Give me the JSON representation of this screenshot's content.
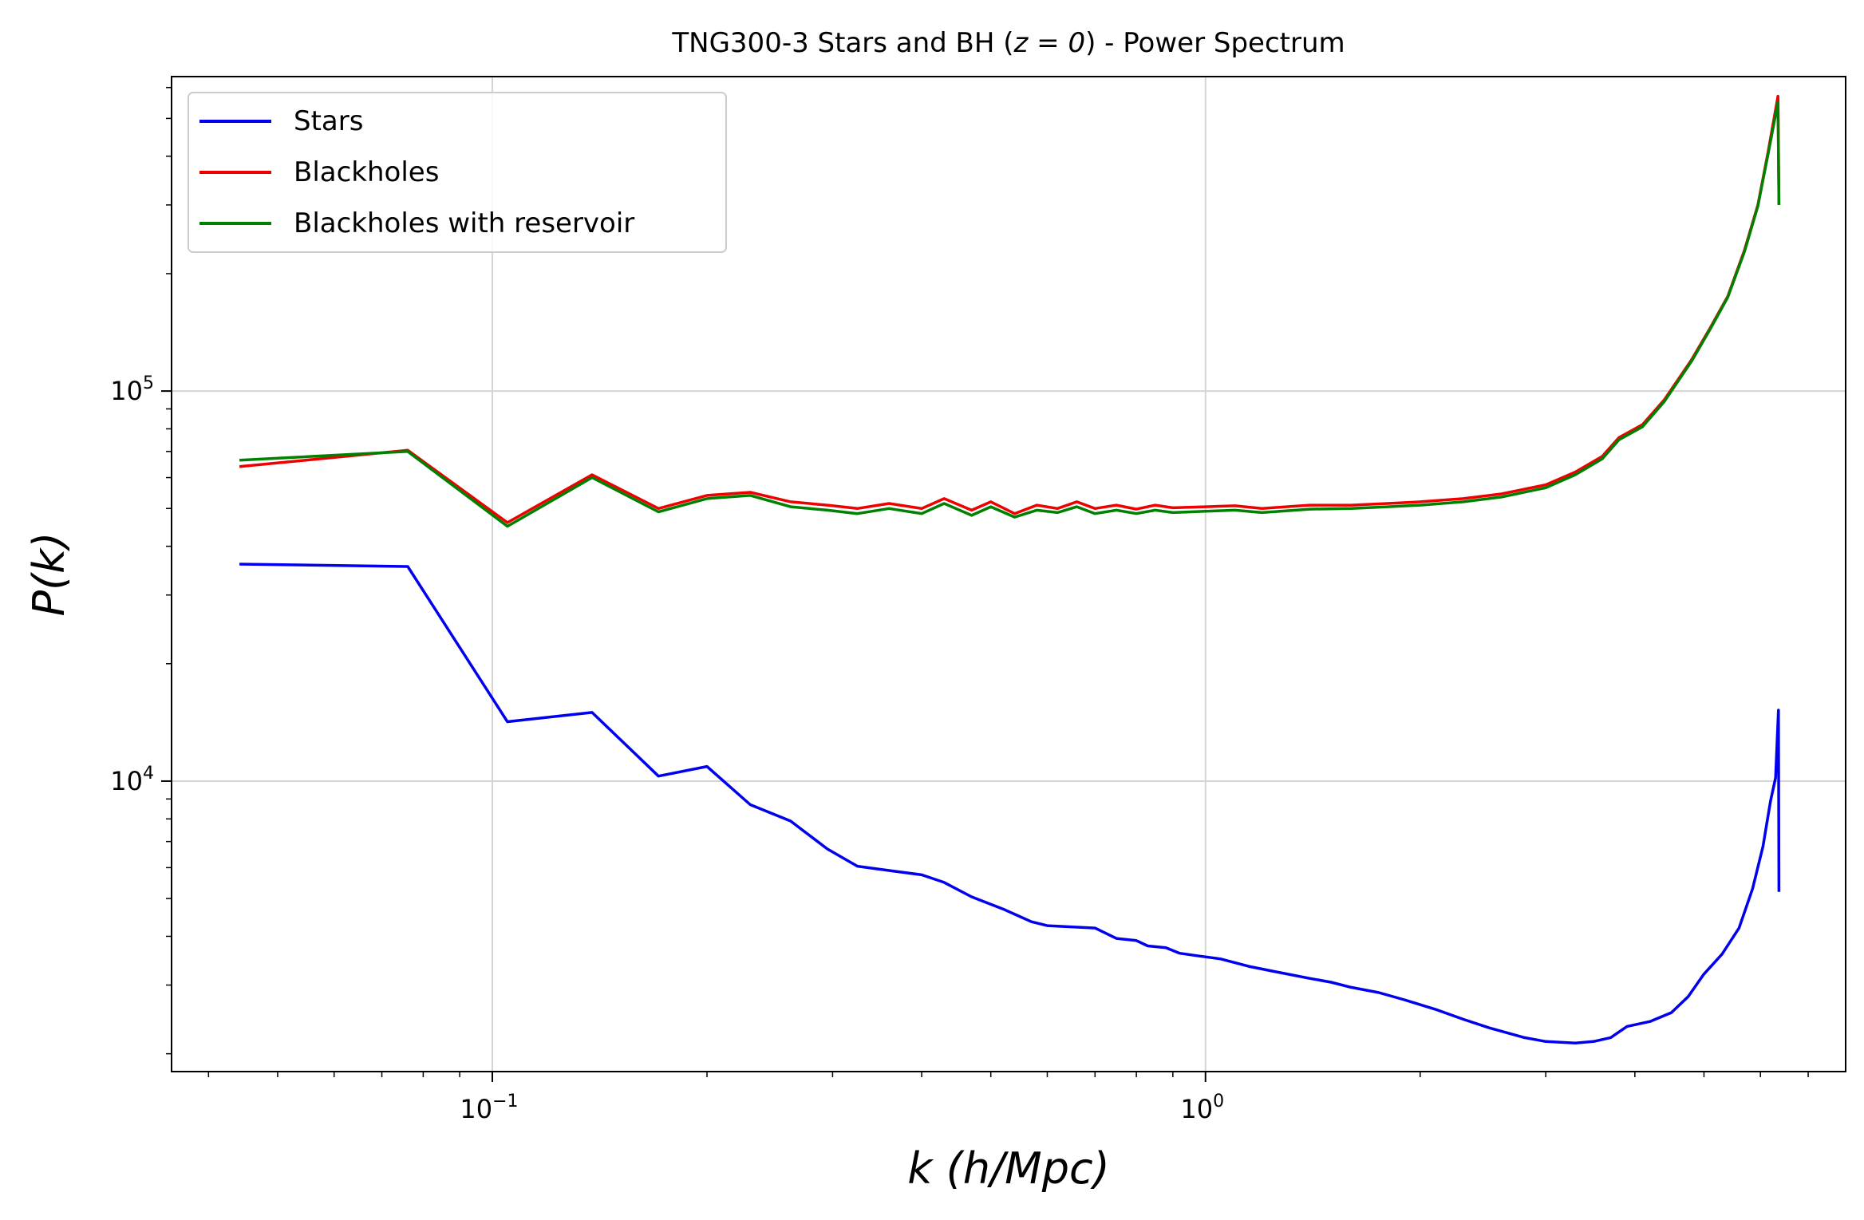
{
  "chart_data": {
    "type": "line",
    "title": "TNG300-3 Stars and BH (z = 0) - Power Spectrum",
    "title_parts": {
      "before": "TNG300-3 Stars and BH (",
      "math": "z = 0",
      "after": ") - Power Spectrum"
    },
    "xlabel": "k (h/Mpc)",
    "ylabel": "P(k)",
    "xscale": "log",
    "yscale": "log",
    "xlim": [
      0.0355,
      7.9
    ],
    "ylim": [
      1800,
      640000
    ],
    "grid": true,
    "legend_position": "upper-left",
    "xticks": [
      {
        "value": 0.1,
        "base": "10",
        "exp": "−1"
      },
      {
        "value": 1,
        "base": "10",
        "exp": "0"
      }
    ],
    "yticks": [
      {
        "value": 10000,
        "base": "10",
        "exp": "4"
      },
      {
        "value": 100000,
        "base": "10",
        "exp": "5"
      }
    ],
    "series": [
      {
        "name": "Stars",
        "color": "#0000ee",
        "points": [
          [
            0.0442,
            36000
          ],
          [
            0.0761,
            35500
          ],
          [
            0.105,
            14200
          ],
          [
            0.138,
            15000
          ],
          [
            0.171,
            10300
          ],
          [
            0.2,
            10900
          ],
          [
            0.23,
            8700
          ],
          [
            0.262,
            7900
          ],
          [
            0.295,
            6700
          ],
          [
            0.325,
            6050
          ],
          [
            0.36,
            5900
          ],
          [
            0.4,
            5750
          ],
          [
            0.43,
            5500
          ],
          [
            0.47,
            5050
          ],
          [
            0.52,
            4700
          ],
          [
            0.57,
            4360
          ],
          [
            0.6,
            4260
          ],
          [
            0.7,
            4200
          ],
          [
            0.75,
            3950
          ],
          [
            0.8,
            3900
          ],
          [
            0.83,
            3780
          ],
          [
            0.88,
            3740
          ],
          [
            0.92,
            3620
          ],
          [
            0.98,
            3560
          ],
          [
            1.05,
            3500
          ],
          [
            1.15,
            3350
          ],
          [
            1.25,
            3250
          ],
          [
            1.4,
            3120
          ],
          [
            1.5,
            3050
          ],
          [
            1.6,
            2960
          ],
          [
            1.75,
            2870
          ],
          [
            1.9,
            2750
          ],
          [
            2.1,
            2600
          ],
          [
            2.3,
            2450
          ],
          [
            2.5,
            2330
          ],
          [
            2.8,
            2200
          ],
          [
            3.0,
            2150
          ],
          [
            3.3,
            2130
          ],
          [
            3.5,
            2150
          ],
          [
            3.7,
            2200
          ],
          [
            3.9,
            2350
          ],
          [
            4.2,
            2420
          ],
          [
            4.5,
            2550
          ],
          [
            4.75,
            2800
          ],
          [
            5.0,
            3200
          ],
          [
            5.3,
            3600
          ],
          [
            5.6,
            4200
          ],
          [
            5.85,
            5300
          ],
          [
            6.05,
            6800
          ],
          [
            6.2,
            8900
          ],
          [
            6.3,
            10200
          ],
          [
            6.36,
            15200
          ],
          [
            6.37,
            5200
          ]
        ]
      },
      {
        "name": "Blackholes",
        "color": "#ee0000",
        "points": [
          [
            0.0442,
            64000
          ],
          [
            0.0761,
            70500
          ],
          [
            0.105,
            46000
          ],
          [
            0.138,
            61000
          ],
          [
            0.171,
            50000
          ],
          [
            0.2,
            54000
          ],
          [
            0.23,
            55000
          ],
          [
            0.262,
            52000
          ],
          [
            0.295,
            51000
          ],
          [
            0.325,
            50000
          ],
          [
            0.36,
            51500
          ],
          [
            0.4,
            50000
          ],
          [
            0.43,
            53000
          ],
          [
            0.47,
            49500
          ],
          [
            0.5,
            52000
          ],
          [
            0.54,
            48500
          ],
          [
            0.58,
            51000
          ],
          [
            0.62,
            50000
          ],
          [
            0.66,
            52000
          ],
          [
            0.7,
            50000
          ],
          [
            0.75,
            51000
          ],
          [
            0.8,
            49800
          ],
          [
            0.85,
            51000
          ],
          [
            0.9,
            50200
          ],
          [
            1.0,
            50500
          ],
          [
            1.1,
            50800
          ],
          [
            1.2,
            50000
          ],
          [
            1.4,
            51000
          ],
          [
            1.6,
            51000
          ],
          [
            1.8,
            51500
          ],
          [
            2.0,
            52000
          ],
          [
            2.3,
            53000
          ],
          [
            2.6,
            54500
          ],
          [
            3.0,
            57500
          ],
          [
            3.3,
            62000
          ],
          [
            3.6,
            68000
          ],
          [
            3.8,
            76000
          ],
          [
            4.1,
            82000
          ],
          [
            4.4,
            95000
          ],
          [
            4.8,
            120000
          ],
          [
            5.1,
            145000
          ],
          [
            5.4,
            175000
          ],
          [
            5.7,
            230000
          ],
          [
            5.95,
            300000
          ],
          [
            6.15,
            410000
          ],
          [
            6.35,
            570000
          ],
          [
            6.37,
            300000
          ]
        ]
      },
      {
        "name": "Blackholes with reservoir",
        "color": "#008000",
        "points": [
          [
            0.0442,
            66500
          ],
          [
            0.0761,
            70000
          ],
          [
            0.105,
            45000
          ],
          [
            0.138,
            60000
          ],
          [
            0.171,
            49000
          ],
          [
            0.2,
            53000
          ],
          [
            0.23,
            54000
          ],
          [
            0.262,
            50500
          ],
          [
            0.295,
            49500
          ],
          [
            0.325,
            48500
          ],
          [
            0.36,
            50000
          ],
          [
            0.4,
            48500
          ],
          [
            0.43,
            51500
          ],
          [
            0.47,
            48000
          ],
          [
            0.5,
            50500
          ],
          [
            0.54,
            47500
          ],
          [
            0.58,
            49500
          ],
          [
            0.62,
            48800
          ],
          [
            0.66,
            50500
          ],
          [
            0.7,
            48500
          ],
          [
            0.75,
            49500
          ],
          [
            0.8,
            48500
          ],
          [
            0.85,
            49500
          ],
          [
            0.9,
            48800
          ],
          [
            1.0,
            49200
          ],
          [
            1.1,
            49500
          ],
          [
            1.2,
            48800
          ],
          [
            1.4,
            49800
          ],
          [
            1.6,
            50000
          ],
          [
            1.8,
            50500
          ],
          [
            2.0,
            51000
          ],
          [
            2.3,
            52000
          ],
          [
            2.6,
            53500
          ],
          [
            3.0,
            56500
          ],
          [
            3.3,
            61000
          ],
          [
            3.6,
            67000
          ],
          [
            3.8,
            75000
          ],
          [
            4.1,
            81000
          ],
          [
            4.4,
            94000
          ],
          [
            4.8,
            119000
          ],
          [
            5.1,
            144000
          ],
          [
            5.4,
            174000
          ],
          [
            5.7,
            228000
          ],
          [
            5.95,
            298000
          ],
          [
            6.15,
            405000
          ],
          [
            6.35,
            550000
          ],
          [
            6.37,
            300000
          ]
        ]
      }
    ]
  }
}
